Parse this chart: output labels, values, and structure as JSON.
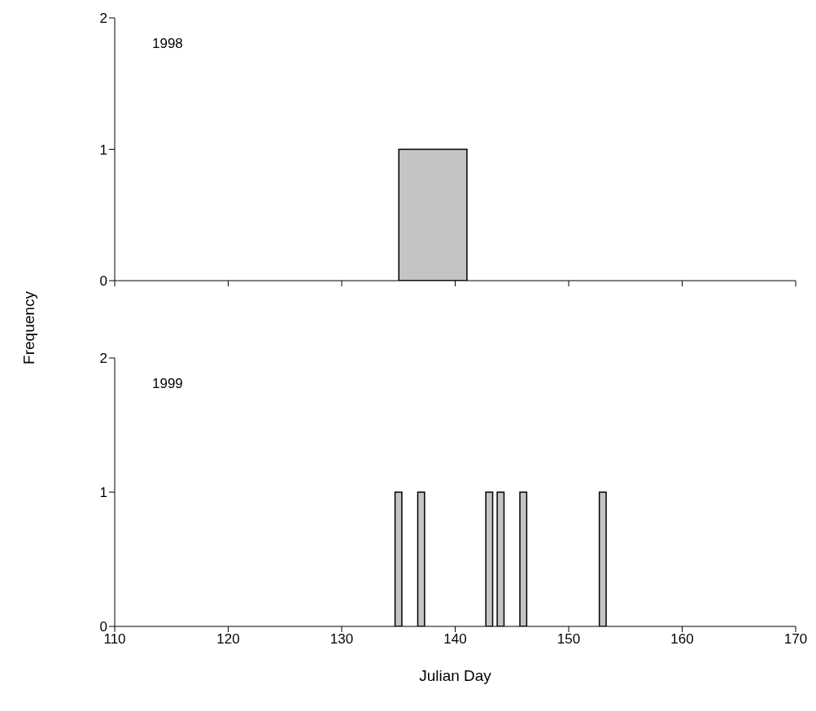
{
  "chart_data": [
    {
      "type": "histogram",
      "ylabel": "Frequency",
      "annotations": [
        "1998"
      ],
      "bins": [
        135,
        141
      ],
      "values": [
        1
      ],
      "color": "#c4c4c4",
      "xlim": [
        110,
        170
      ],
      "xticks": [
        110,
        120,
        130,
        140,
        150,
        160,
        170
      ],
      "ylim": [
        0,
        2
      ],
      "yticks": [
        0,
        1,
        2
      ],
      "tick_labels": "y"
    },
    {
      "type": "histogram",
      "xlabel": "Julian Day",
      "annotations": [
        "1999"
      ],
      "bins": [
        134.7,
        135.3,
        136.7,
        137.3,
        142.7,
        143.3,
        143.7,
        144.3,
        145.7,
        146.3,
        152.7,
        153.3
      ],
      "values": [
        1,
        0,
        1,
        0,
        1,
        0,
        1,
        0,
        1,
        0,
        1
      ],
      "color": "#c4c4c4",
      "xlim": [
        110,
        170
      ],
      "xticks": [
        110,
        120,
        130,
        140,
        150,
        160,
        170
      ],
      "ylim": [
        0,
        2
      ],
      "yticks": [
        0,
        1,
        2
      ]
    }
  ]
}
